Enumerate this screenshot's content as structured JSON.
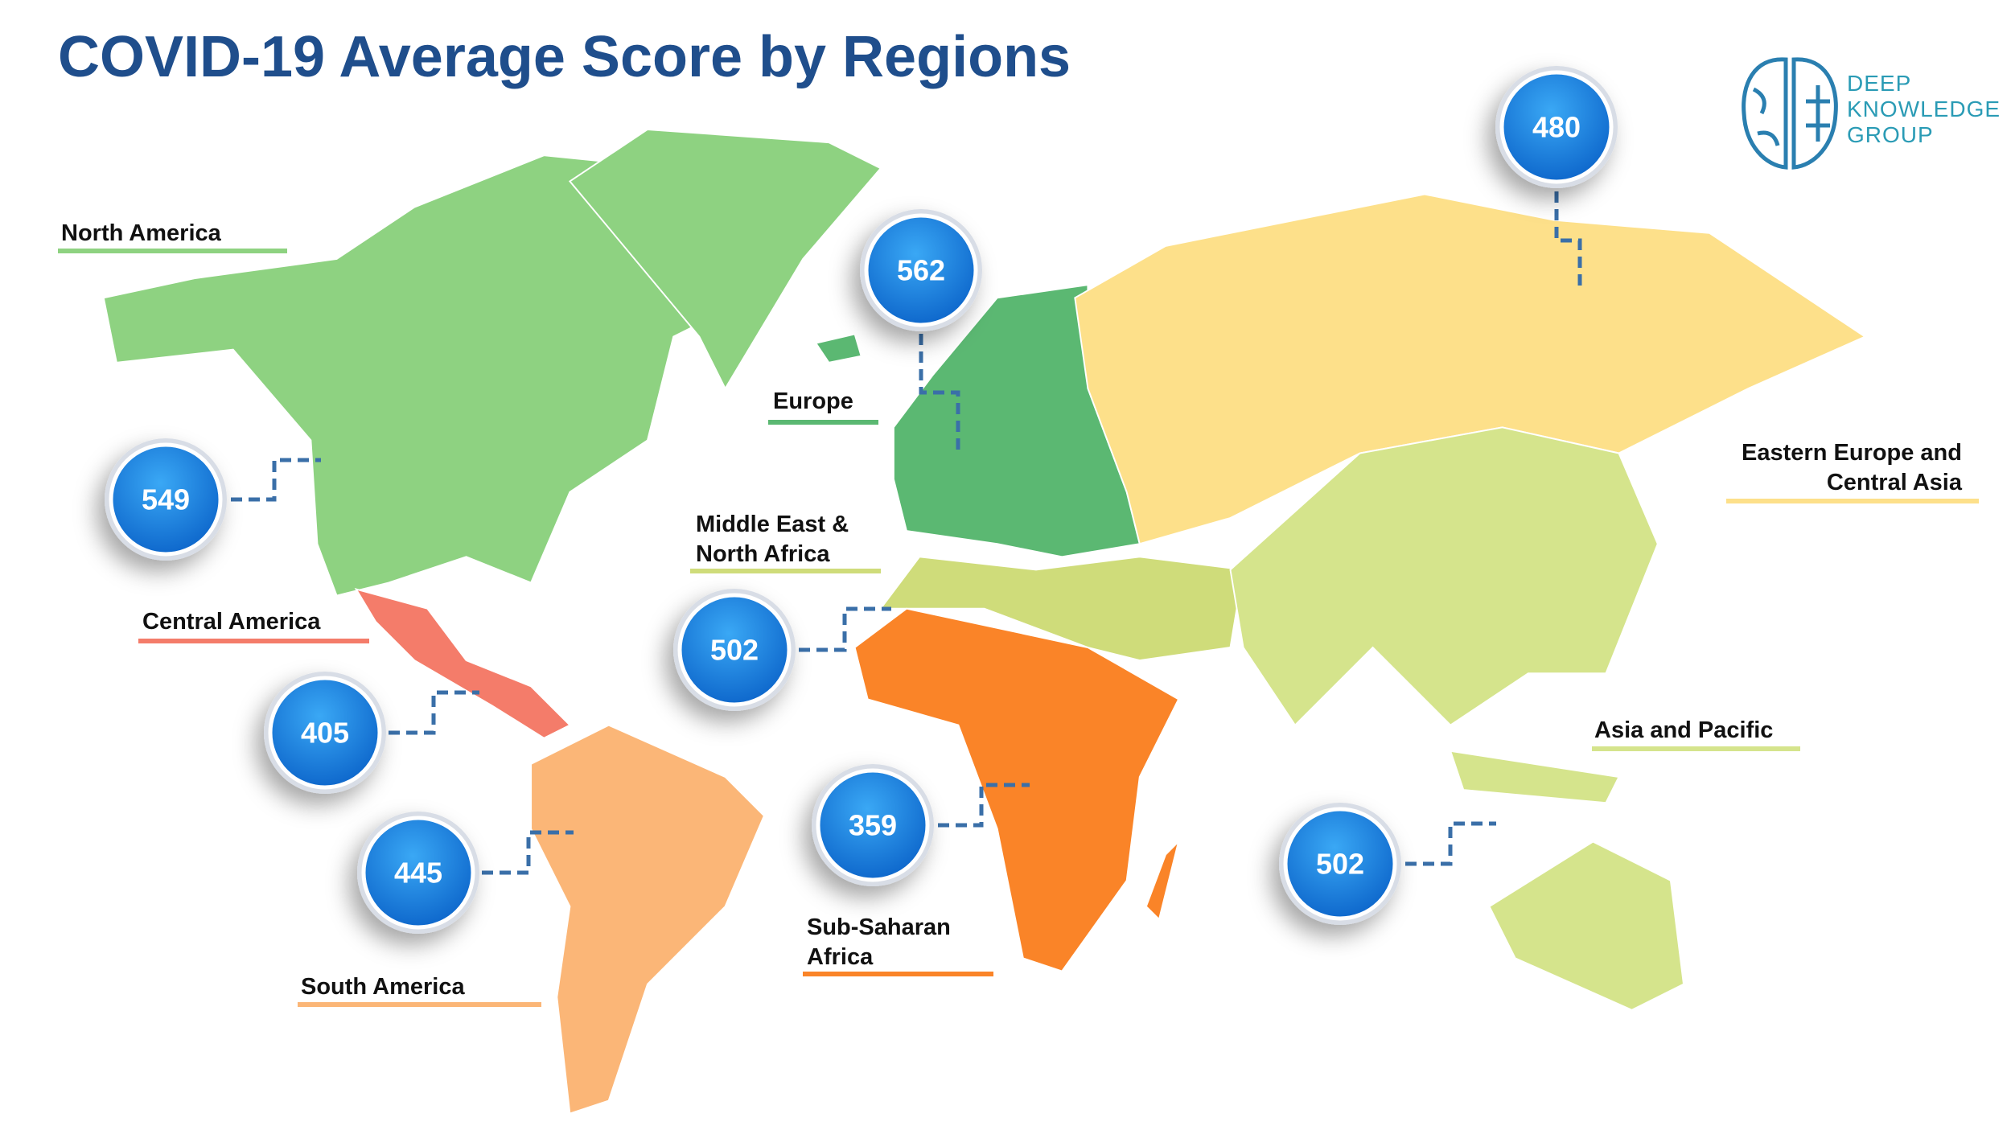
{
  "title": "COVID-19 Average Score by Regions",
  "logo": {
    "lines": [
      "DEEP",
      "KNOWLEDGE",
      "GROUP"
    ]
  },
  "regions": [
    {
      "name": "North America",
      "score": 549,
      "color": "#8ed281"
    },
    {
      "name": "Central America",
      "score": 405,
      "color": "#f47c6a"
    },
    {
      "name": "South America",
      "score": 445,
      "color": "#fbb677"
    },
    {
      "name": "Europe",
      "score": 562,
      "color": "#5bb872"
    },
    {
      "name": "Eastern Europe and Central Asia",
      "score": 480,
      "color": "#fde08a"
    },
    {
      "name": "Middle East & North Africa",
      "score": 502,
      "color": "#cfdc7a"
    },
    {
      "name": "Sub-Saharan Africa",
      "score": 359,
      "color": "#fa8428"
    },
    {
      "name": "Asia and Pacific",
      "score": 502,
      "color": "#d5e48c"
    }
  ]
}
